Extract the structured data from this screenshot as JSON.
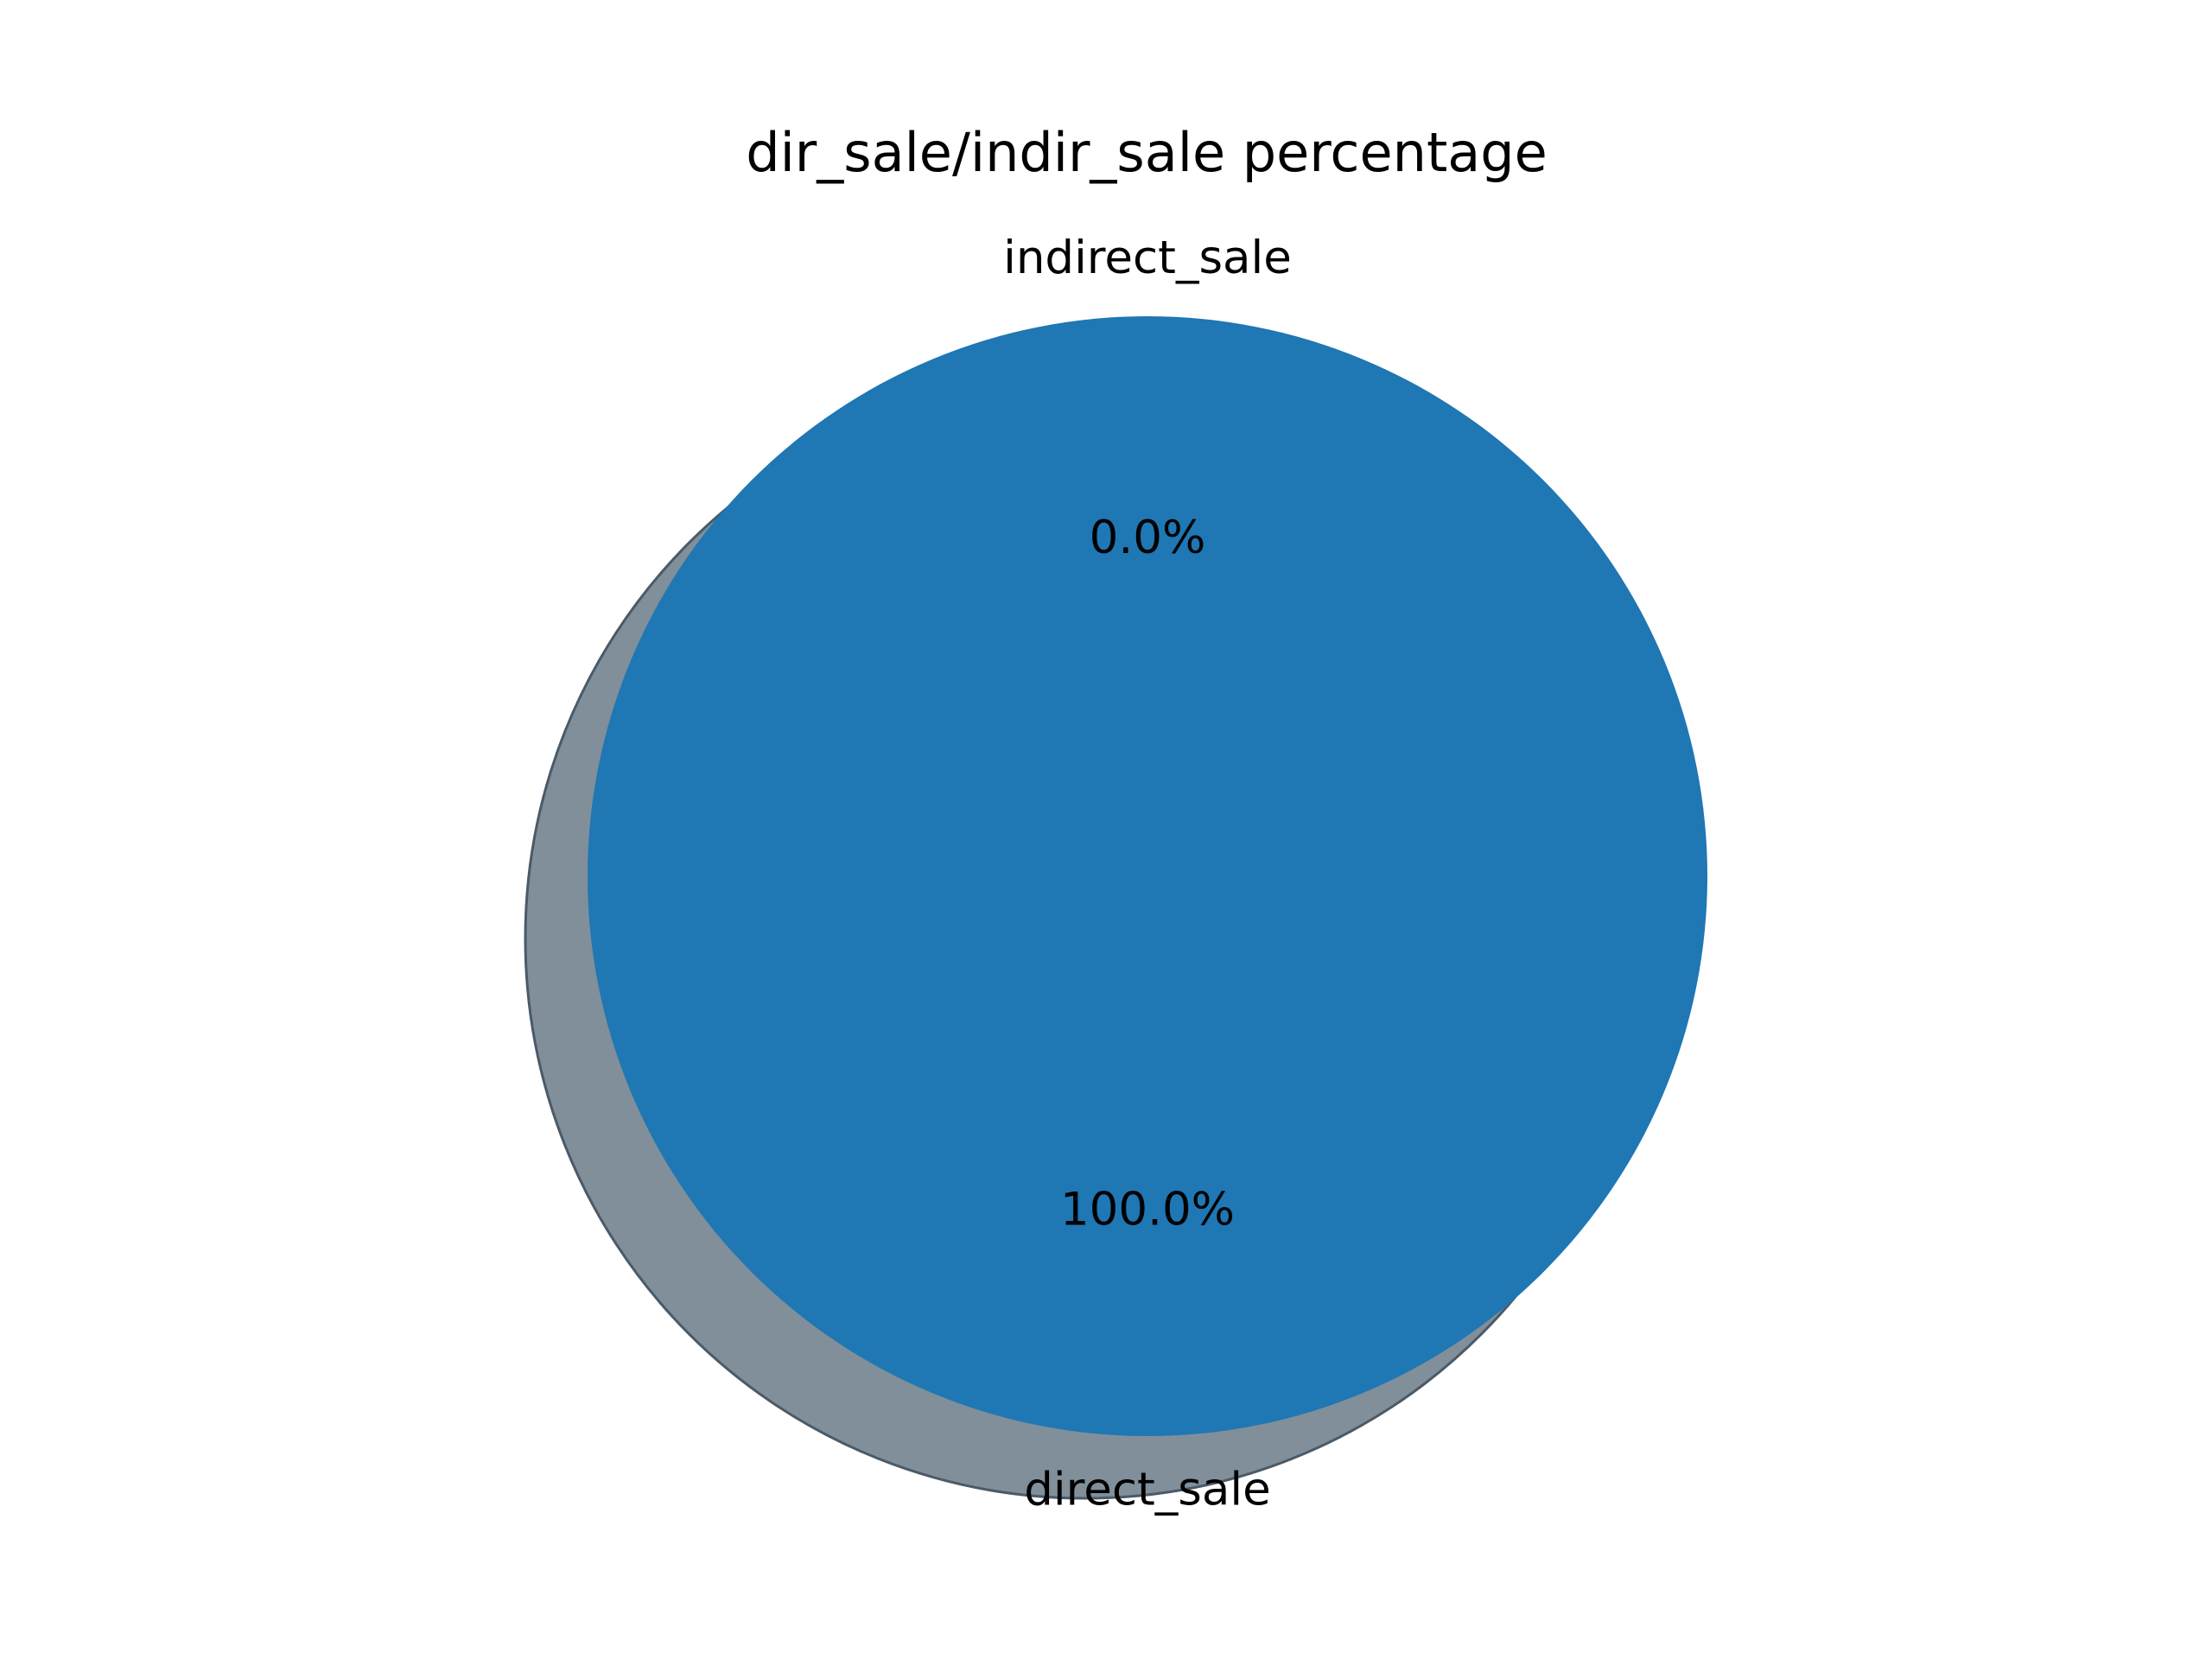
{
  "chart_data": {
    "type": "pie",
    "title": "dir_sale/indir_sale percentage",
    "slices": [
      {
        "label": "indirect_sale",
        "value": 0.0,
        "pct_label": "0.0%",
        "color": "#ff7f0e"
      },
      {
        "label": "direct_sale",
        "value": 100.0,
        "pct_label": "100.0%",
        "color": "#1f77b4"
      }
    ],
    "shadow": true,
    "shadow_color": "#808f99",
    "legend": "none"
  }
}
